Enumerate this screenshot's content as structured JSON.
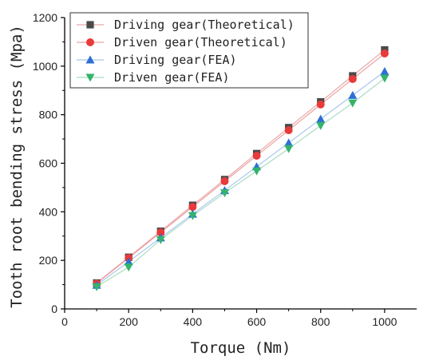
{
  "chart_data": {
    "type": "scatter",
    "title": "",
    "xlabel": "Torque (Nm)",
    "ylabel": "Tooth root bending stress (Mpa)",
    "xlim": [
      0,
      1100
    ],
    "ylim": [
      0,
      1200
    ],
    "xticks": [
      0,
      200,
      400,
      600,
      800,
      1000
    ],
    "yticks": [
      0,
      200,
      400,
      600,
      800,
      1000,
      1200
    ],
    "grid": false,
    "legend_position": "top-left",
    "x": [
      100,
      200,
      300,
      400,
      500,
      600,
      700,
      800,
      900,
      1000
    ],
    "series": [
      {
        "name": "Driving gear(Theoretical)",
        "marker": "square",
        "color": "#4a4a4a",
        "line_color": "#e8a8a8",
        "values": [
          107,
          213,
          320,
          427,
          533,
          640,
          747,
          853,
          960,
          1067
        ]
      },
      {
        "name": "Driven gear(Theoretical)",
        "marker": "circle",
        "color": "#e83a3a",
        "line_color": "#f0a0a0",
        "values": [
          105,
          210,
          315,
          420,
          526,
          631,
          736,
          842,
          947,
          1052
        ]
      },
      {
        "name": "Driving gear(FEA)",
        "marker": "triangle-up",
        "color": "#2e6fd6",
        "line_color": "#a8c8ee",
        "values": [
          98,
          195,
          293,
          391,
          488,
          586,
          684,
          782,
          880,
          978
        ]
      },
      {
        "name": "Driven gear(FEA)",
        "marker": "triangle-down",
        "color": "#33b36b",
        "line_color": "#a8dcc0",
        "values": [
          91,
          172,
          285,
          384,
          478,
          568,
          660,
          755,
          848,
          950
        ]
      }
    ]
  }
}
